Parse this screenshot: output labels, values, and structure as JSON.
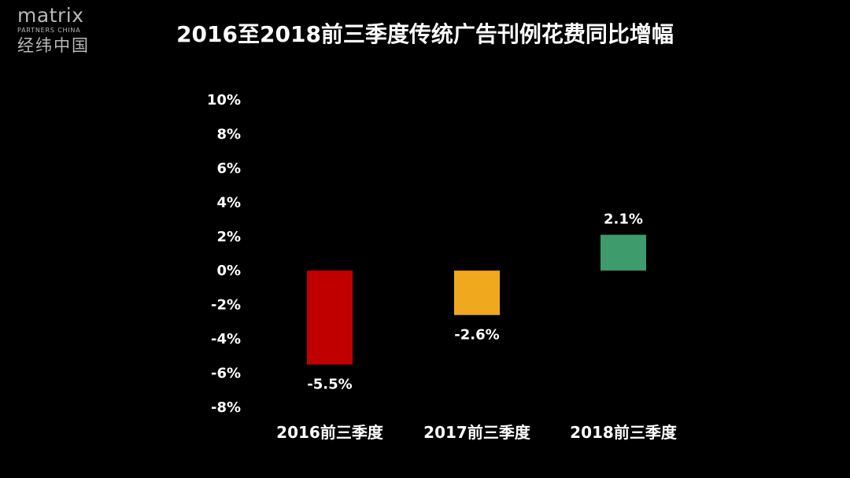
{
  "logo": {
    "main": "matrix",
    "sub": "PARTNERS CHINA",
    "cn": "经纬中国"
  },
  "chart_data": {
    "type": "bar",
    "title": "2016至2018前三季度传统广告刊例花费同比增幅",
    "categories": [
      "2016前三季度",
      "2017前三季度",
      "2018前三季度"
    ],
    "values": [
      -5.5,
      -2.6,
      2.1
    ],
    "value_labels": [
      "-5.5%",
      "-2.6%",
      "2.1%"
    ],
    "colors": [
      "#c00000",
      "#f0a91f",
      "#3e9b6b"
    ],
    "yticks": [
      10,
      8,
      6,
      4,
      2,
      0,
      -2,
      -4,
      -6,
      -8
    ],
    "ytick_labels": [
      "10%",
      "8%",
      "6%",
      "4%",
      "2%",
      "0%",
      "-2%",
      "-4%",
      "-6%",
      "-8%"
    ],
    "ylim": [
      -8,
      10
    ],
    "unit": "%",
    "grid": false,
    "legend": "none",
    "xlabel": "",
    "ylabel": ""
  }
}
